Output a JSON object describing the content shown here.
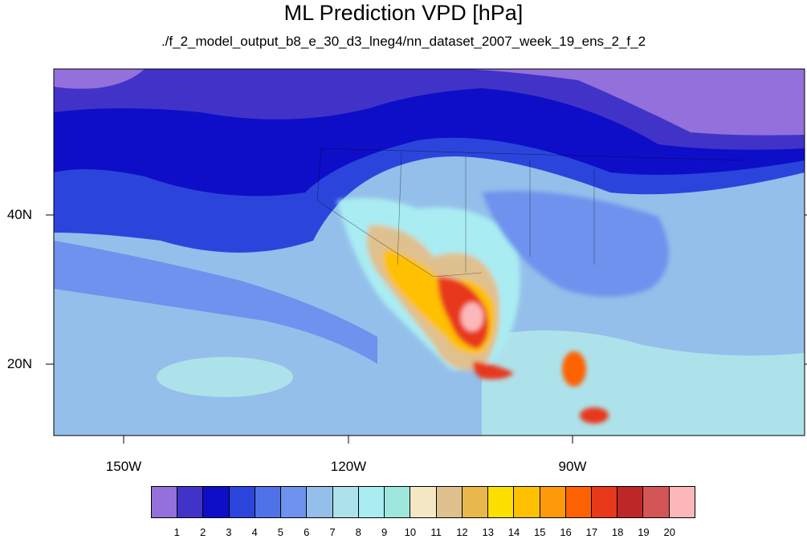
{
  "title": "ML Prediction VPD [hPa]",
  "subtitle": "./f_2_model_output_b8_e_30_d3_lneg4/nn_dataset_2007_week_19_ens_2_f_2",
  "lat_labels": [
    {
      "lat": 40,
      "text": "40N"
    },
    {
      "lat": 20,
      "text": "20N"
    }
  ],
  "lon_labels": [
    {
      "lon": -150,
      "text": "150W"
    },
    {
      "lon": -120,
      "text": "120W"
    },
    {
      "lon": -90,
      "text": "90W"
    }
  ],
  "colorbar": {
    "colors": [
      "#9370db",
      "#4133c8",
      "#0e0ec8",
      "#2b45dc",
      "#4f72e8",
      "#6e92ee",
      "#94bfea",
      "#aee2ea",
      "#a9ecf2",
      "#9de7dc",
      "#f4e7c3",
      "#dfc190",
      "#e9b84c",
      "#fee000",
      "#fec000",
      "#fe9a0a",
      "#fe6200",
      "#e8391a",
      "#be2727",
      "#d45556",
      "#fcb8b8"
    ],
    "labels": [
      "1",
      "2",
      "3",
      "4",
      "5",
      "6",
      "7",
      "8",
      "9",
      "10",
      "11",
      "12",
      "13",
      "14",
      "15",
      "16",
      "17",
      "18",
      "19",
      "20"
    ]
  }
}
